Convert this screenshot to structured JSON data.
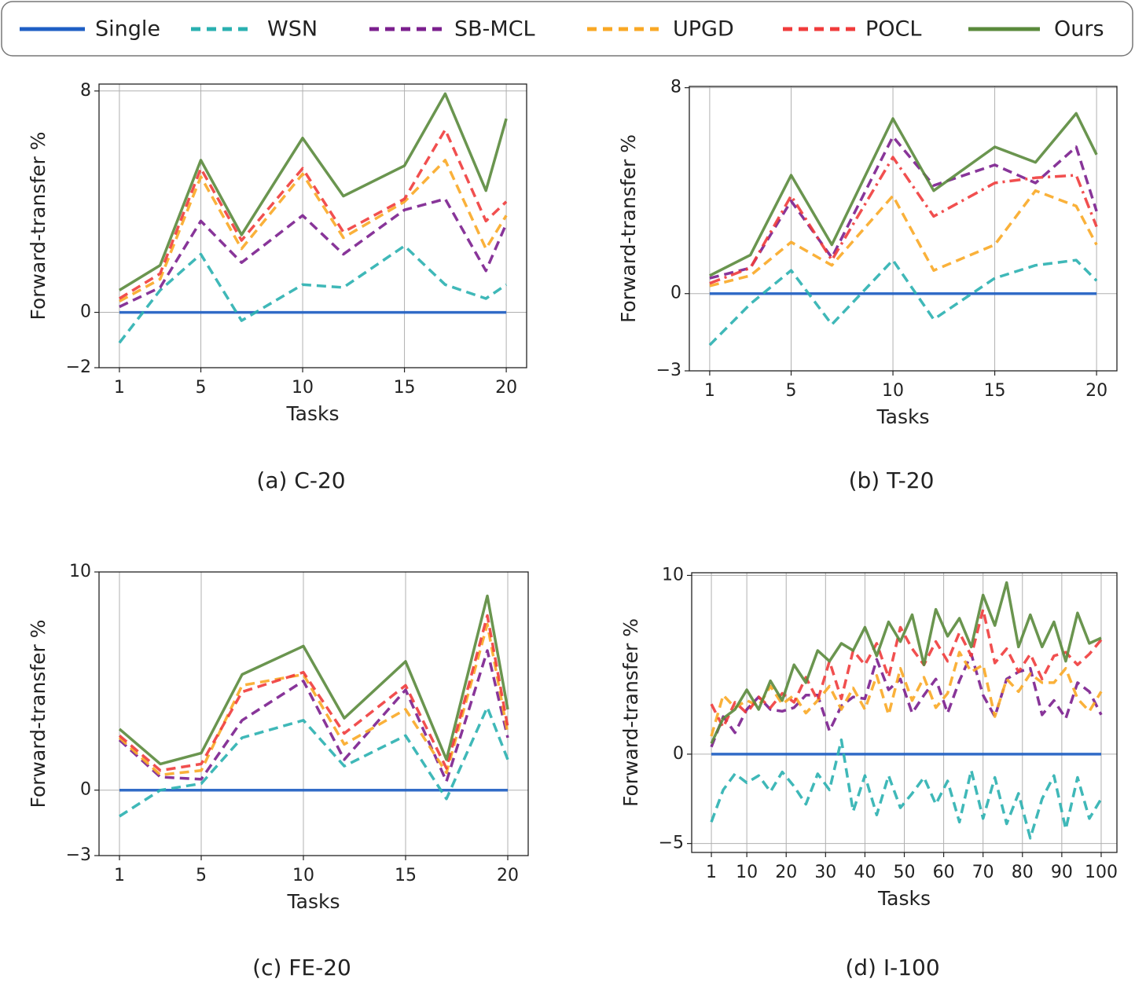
{
  "legend": [
    {
      "name": "Single",
      "color": "#1f5fc4",
      "dashed": false
    },
    {
      "name": "WSN",
      "color": "#2ab0b0",
      "dashed": true
    },
    {
      "name": "SB-MCL",
      "color": "#7b1f8e",
      "dashed": true
    },
    {
      "name": "UPGD",
      "color": "#f9a825",
      "dashed": true
    },
    {
      "name": "POCL",
      "color": "#f03c3c",
      "dashed": true
    },
    {
      "name": "Ours",
      "color": "#5a8a3c",
      "dashed": false
    }
  ],
  "chart_data": [
    {
      "type": "line",
      "caption": "(a) C-20",
      "xlabel": "Tasks",
      "ylabel": "Forward-transfer %",
      "x": [
        1,
        3,
        5,
        7,
        10,
        12,
        15,
        17,
        19,
        20
      ],
      "xlim": [
        0,
        21
      ],
      "xticks": [
        1,
        5,
        10,
        15,
        20
      ],
      "ylim": [
        -2,
        8.25
      ],
      "yticks": [
        {
          "value": -2,
          "label": "−2"
        },
        0,
        8
      ],
      "grid": true,
      "series": [
        {
          "values": [
            0,
            0,
            0,
            0,
            0,
            0,
            0,
            0,
            0,
            0
          ]
        },
        {
          "values": [
            -1.1,
            0.8,
            2.1,
            -0.3,
            1.0,
            0.9,
            2.4,
            1.0,
            0.5,
            1.0
          ]
        },
        {
          "values": [
            0.2,
            0.9,
            3.3,
            1.8,
            3.5,
            2.1,
            3.7,
            4.1,
            1.5,
            3.2
          ]
        },
        {
          "values": [
            0.4,
            1.2,
            4.9,
            2.3,
            5.0,
            2.7,
            4.0,
            5.5,
            2.3,
            3.5
          ]
        },
        {
          "values": [
            0.5,
            1.4,
            5.2,
            2.6,
            5.2,
            2.9,
            4.1,
            6.6,
            3.3,
            4.0
          ]
        },
        {
          "values": [
            0.8,
            1.7,
            5.5,
            2.8,
            6.3,
            4.2,
            5.3,
            7.9,
            4.4,
            7.0
          ]
        }
      ]
    },
    {
      "type": "line",
      "caption": "(b) T-20",
      "xlabel": "Tasks",
      "ylabel": "Forward-transfer %",
      "x": [
        1,
        3,
        5,
        7,
        10,
        12,
        15,
        17,
        19,
        20
      ],
      "xlim": [
        0,
        21
      ],
      "xticks": [
        1,
        5,
        10,
        15,
        20
      ],
      "ylim": [
        -3,
        8.05
      ],
      "yticks": [
        {
          "value": -3,
          "label": "−3"
        },
        0,
        8
      ],
      "grid": true,
      "series": [
        {
          "values": [
            0,
            0,
            0,
            0,
            0,
            0,
            0,
            0,
            0,
            0
          ]
        },
        {
          "values": [
            -2.0,
            -0.4,
            0.9,
            -1.2,
            1.3,
            -1.0,
            0.6,
            1.1,
            1.3,
            0.5
          ]
        },
        {
          "values": [
            0.6,
            1.0,
            3.6,
            1.4,
            6.1,
            4.2,
            5.0,
            4.3,
            5.7,
            3.2
          ]
        },
        {
          "values": [
            0.3,
            0.7,
            2.0,
            1.1,
            3.8,
            0.9,
            1.9,
            4.0,
            3.4,
            1.9
          ]
        },
        {
          "values": [
            0.4,
            1.0,
            3.8,
            1.3,
            5.3,
            3.0,
            4.3,
            4.5,
            4.6,
            2.6
          ],
          "style": "dash-dot"
        },
        {
          "values": [
            0.7,
            1.5,
            4.6,
            1.9,
            6.8,
            4.0,
            5.7,
            5.1,
            7.0,
            5.4
          ]
        }
      ]
    },
    {
      "type": "line",
      "caption": "(c) FE-20",
      "xlabel": "Tasks",
      "ylabel": "Forward-transfer %",
      "x": [
        1,
        3,
        5,
        7,
        10,
        12,
        15,
        17,
        19,
        20
      ],
      "xlim": [
        0,
        21
      ],
      "xticks": [
        1,
        5,
        10,
        15,
        20
      ],
      "ylim": [
        -3,
        10
      ],
      "yticks": [
        {
          "value": -3,
          "label": "−3"
        },
        0,
        10
      ],
      "grid": true,
      "series": [
        {
          "values": [
            0,
            0,
            0,
            0,
            0,
            0,
            0,
            0,
            0,
            0
          ]
        },
        {
          "values": [
            -1.2,
            0.0,
            0.3,
            2.4,
            3.2,
            1.1,
            2.5,
            -0.4,
            3.8,
            1.4
          ]
        },
        {
          "values": [
            2.3,
            0.6,
            0.5,
            3.2,
            5.0,
            1.4,
            4.6,
            0.4,
            6.4,
            2.4
          ]
        },
        {
          "values": [
            2.4,
            0.7,
            0.9,
            4.8,
            5.3,
            2.1,
            3.7,
            0.8,
            7.6,
            2.6
          ]
        },
        {
          "values": [
            2.5,
            0.9,
            1.2,
            4.5,
            5.4,
            2.6,
            4.8,
            1.0,
            8.0,
            2.9
          ]
        },
        {
          "values": [
            2.8,
            1.2,
            1.7,
            5.3,
            6.6,
            3.3,
            5.9,
            1.4,
            8.9,
            3.7
          ]
        }
      ]
    },
    {
      "type": "line",
      "caption": "(d) I-100",
      "xlabel": "Tasks",
      "ylabel": "Forward-transfer %",
      "x": [
        1,
        4,
        7,
        10,
        13,
        16,
        19,
        22,
        25,
        28,
        31,
        34,
        37,
        40,
        43,
        46,
        49,
        52,
        55,
        58,
        61,
        64,
        67,
        70,
        73,
        76,
        79,
        82,
        85,
        88,
        91,
        94,
        97,
        100
      ],
      "xlim": [
        -4,
        104
      ],
      "xticks": [
        1,
        10,
        20,
        30,
        40,
        50,
        60,
        70,
        80,
        90,
        100
      ],
      "ylim": [
        -5.5,
        10.15
      ],
      "yticks": [
        {
          "value": -5,
          "label": "−5"
        },
        0,
        10
      ],
      "grid": true,
      "series": [
        {
          "values": [
            0,
            0,
            0,
            0,
            0,
            0,
            0,
            0,
            0,
            0,
            0,
            0,
            0,
            0,
            0,
            0,
            0,
            0,
            0,
            0,
            0,
            0,
            0,
            0,
            0,
            0,
            0,
            0,
            0,
            0,
            0,
            0,
            0,
            0
          ]
        },
        {
          "values": [
            -3.8,
            -2.0,
            -1.1,
            -1.6,
            -1.2,
            -2.1,
            -1.0,
            -1.8,
            -2.8,
            -1.1,
            -2.0,
            0.8,
            -3.2,
            -1.2,
            -3.4,
            -1.2,
            -3.0,
            -2.2,
            -1.3,
            -2.8,
            -1.5,
            -3.8,
            -0.9,
            -3.6,
            -1.3,
            -3.9,
            -2.2,
            -4.7,
            -2.5,
            -1.2,
            -4.2,
            -1.3,
            -3.6,
            -2.5
          ]
        },
        {
          "values": [
            0.4,
            2.1,
            1.2,
            2.5,
            3.2,
            2.5,
            2.4,
            2.6,
            3.3,
            3.3,
            1.3,
            2.7,
            3.2,
            3.1,
            5.3,
            3.6,
            4.2,
            2.3,
            3.3,
            4.2,
            2.3,
            4.1,
            5.6,
            3.3,
            2.1,
            4.2,
            4.6,
            4.8,
            2.2,
            3.0,
            2.0,
            4.0,
            3.5,
            2.2
          ]
        },
        {
          "values": [
            1.0,
            3.3,
            2.6,
            3.0,
            2.7,
            3.8,
            2.8,
            3.3,
            2.3,
            3.0,
            3.8,
            2.5,
            3.7,
            2.5,
            4.4,
            2.2,
            4.8,
            3.0,
            4.3,
            2.6,
            3.4,
            5.7,
            4.6,
            5.0,
            2.1,
            4.2,
            3.5,
            4.5,
            4.0,
            4.0,
            4.8,
            3.1,
            2.4,
            3.5
          ]
        },
        {
          "values": [
            2.8,
            1.5,
            2.9,
            2.3,
            3.2,
            2.6,
            3.4,
            2.9,
            4.3,
            3.0,
            5.2,
            3.1,
            5.8,
            5.0,
            6.2,
            4.3,
            7.1,
            5.9,
            5.0,
            6.3,
            5.2,
            6.8,
            5.5,
            8.1,
            5.1,
            5.9,
            4.6,
            5.6,
            4.2,
            5.5,
            5.7,
            5.0,
            5.6,
            6.4
          ]
        },
        {
          "values": [
            0.6,
            2.0,
            2.5,
            3.6,
            2.5,
            4.1,
            3.0,
            5.0,
            4.0,
            5.8,
            5.2,
            6.2,
            5.8,
            7.1,
            5.5,
            7.4,
            6.3,
            7.8,
            5.0,
            8.1,
            6.6,
            7.6,
            6.0,
            8.9,
            7.2,
            9.6,
            6.0,
            7.8,
            6.0,
            7.4,
            5.2,
            7.9,
            6.2,
            6.5
          ]
        }
      ]
    }
  ]
}
